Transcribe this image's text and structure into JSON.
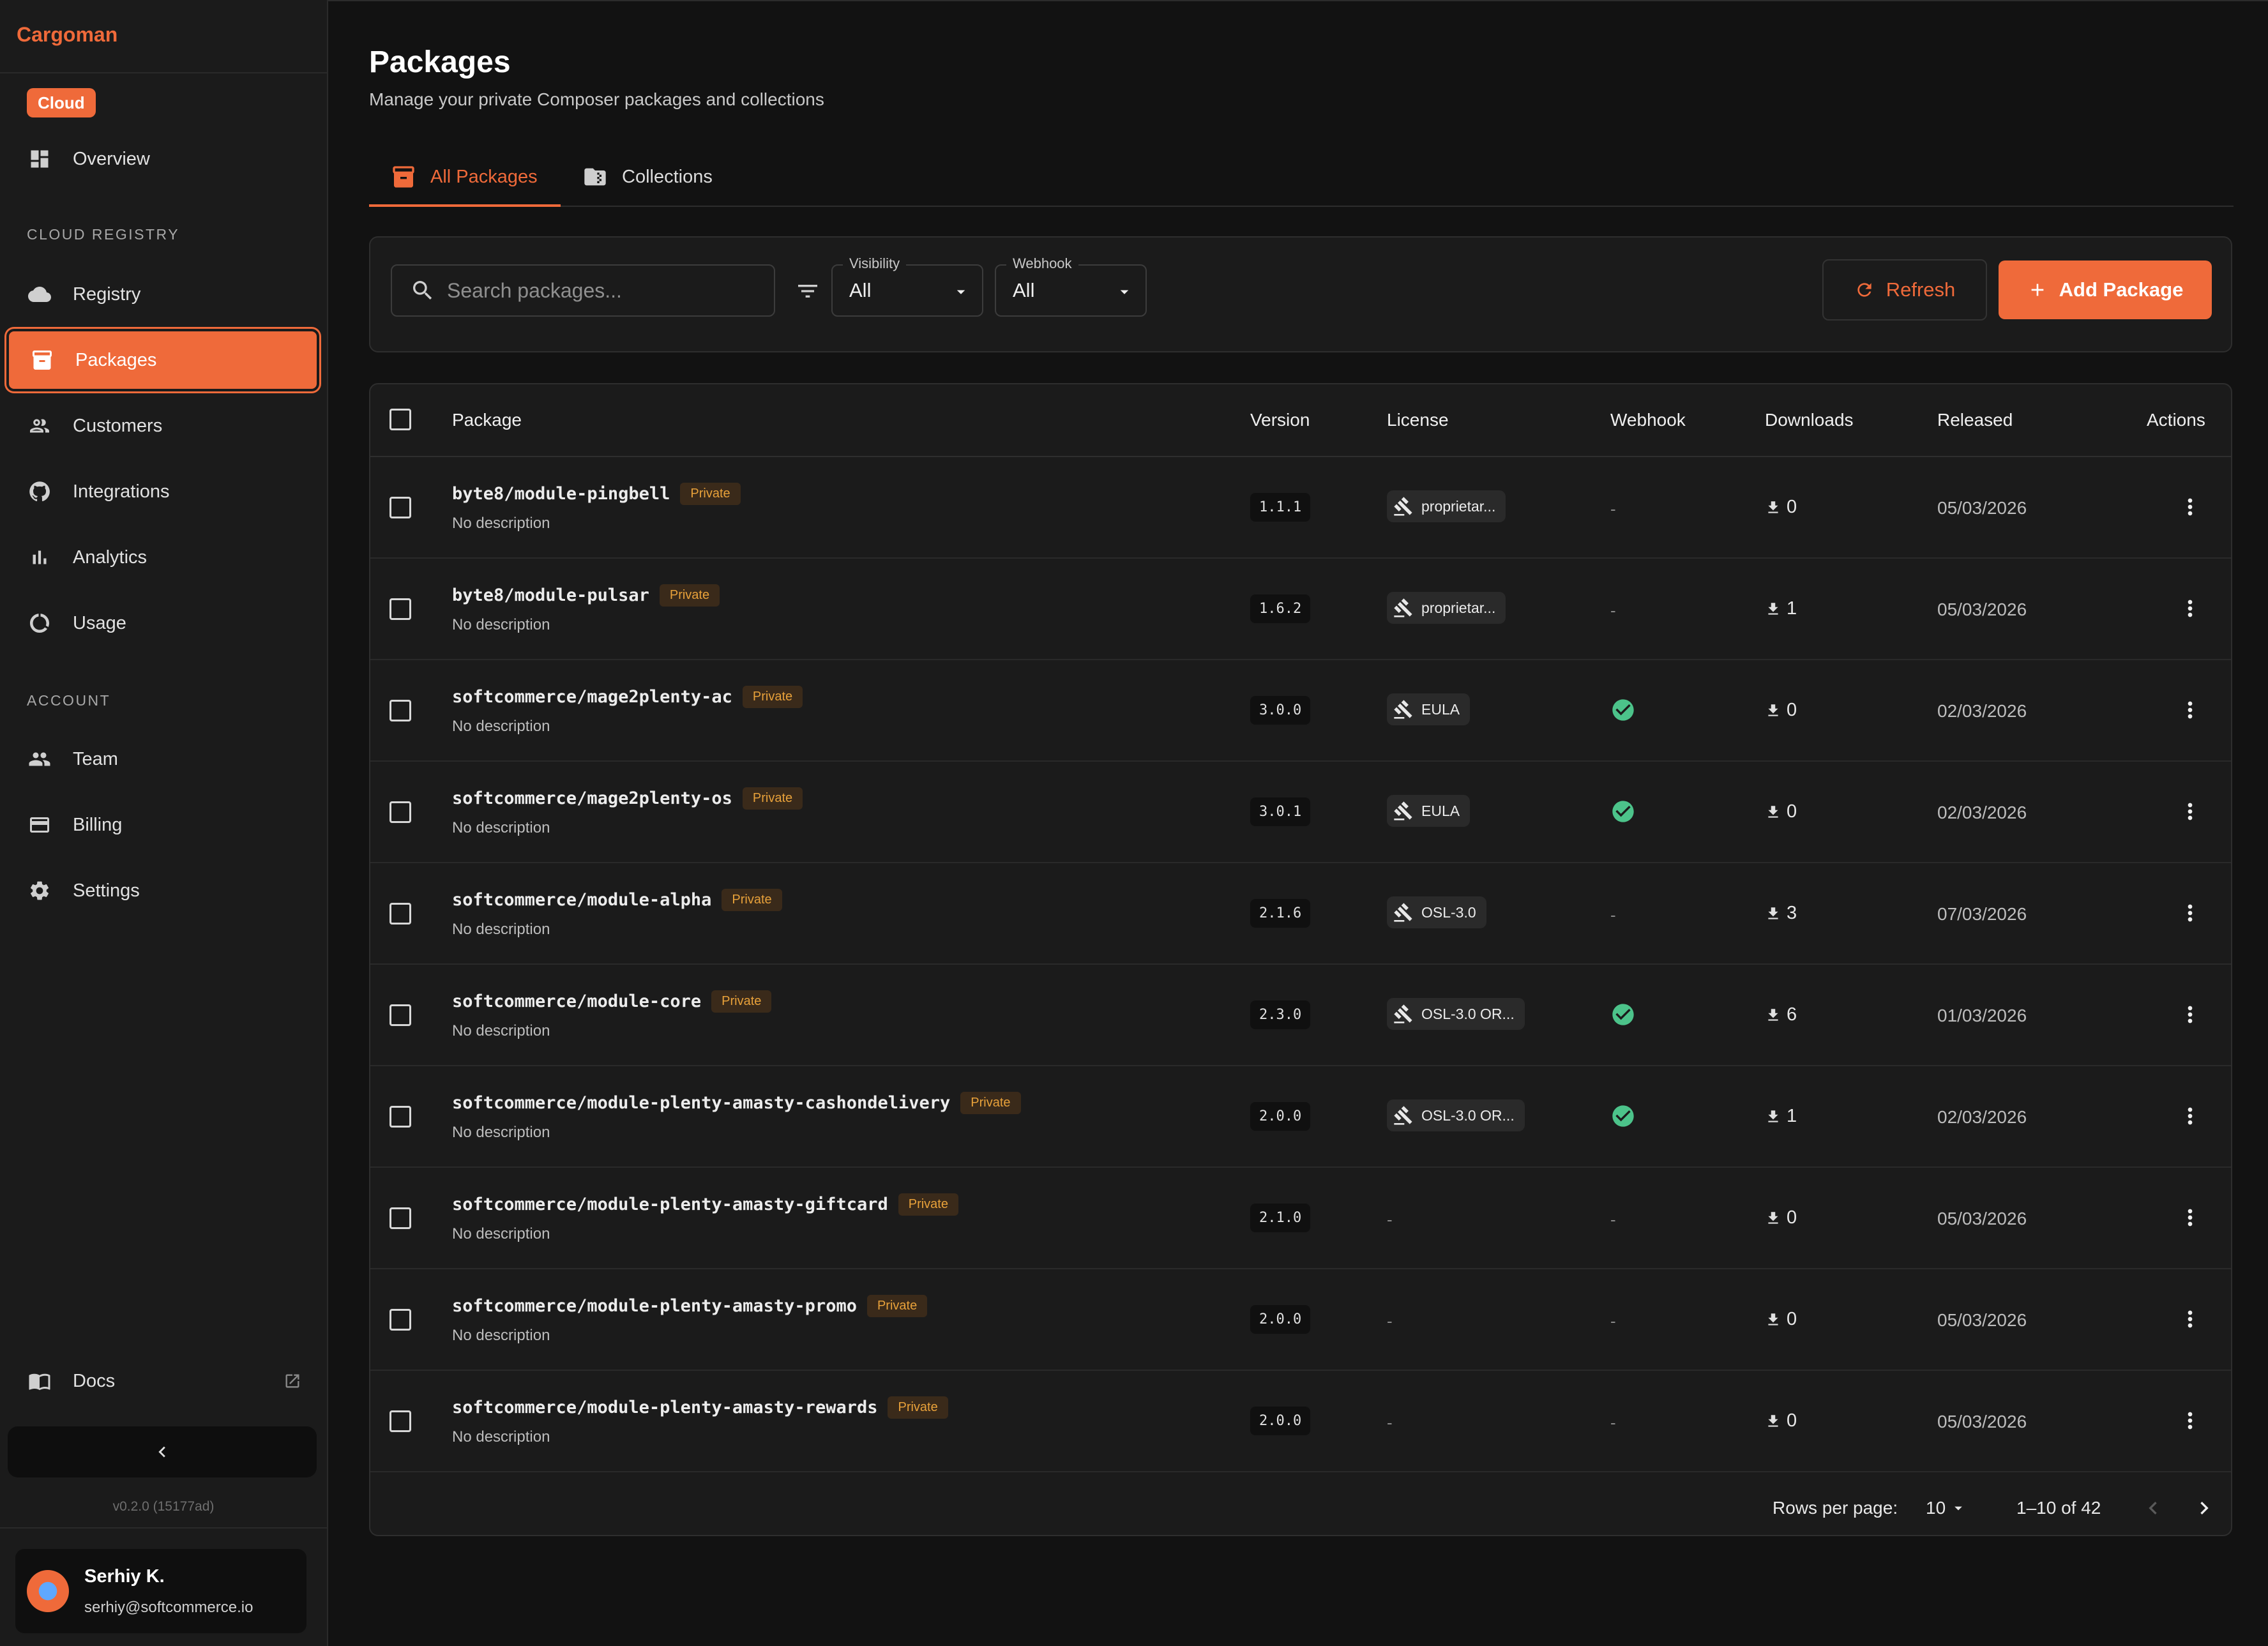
{
  "app": {
    "brand": "Cargoman",
    "badge": "Cloud",
    "version": "v0.2.0 (15177ad)"
  },
  "sidebar": {
    "overview": "Overview",
    "sections": {
      "registry": "CLOUD REGISTRY",
      "account": "ACCOUNT"
    },
    "registry_items": [
      {
        "label": "Registry",
        "icon": "cloud-icon"
      },
      {
        "label": "Packages",
        "icon": "package-icon",
        "active": true
      },
      {
        "label": "Customers",
        "icon": "customers-icon"
      },
      {
        "label": "Integrations",
        "icon": "github-icon"
      },
      {
        "label": "Analytics",
        "icon": "analytics-icon"
      },
      {
        "label": "Usage",
        "icon": "usage-icon"
      }
    ],
    "account_items": [
      {
        "label": "Team",
        "icon": "team-icon"
      },
      {
        "label": "Billing",
        "icon": "credit-card-icon"
      },
      {
        "label": "Settings",
        "icon": "gear-icon"
      }
    ],
    "docs": "Docs",
    "user": {
      "name": "Serhiy K.",
      "email": "serhiy@softcommerce.io"
    }
  },
  "page": {
    "title": "Packages",
    "subtitle": "Manage your private Composer packages and collections"
  },
  "tabs": [
    {
      "label": "All Packages",
      "active": true
    },
    {
      "label": "Collections",
      "active": false
    }
  ],
  "toolbar": {
    "search_placeholder": "Search packages...",
    "visibility_label": "Visibility",
    "visibility_value": "All",
    "webhook_label": "Webhook",
    "webhook_value": "All",
    "refresh_label": "Refresh",
    "add_label": "Add Package"
  },
  "table": {
    "columns": {
      "package": "Package",
      "version": "Version",
      "license": "License",
      "webhook": "Webhook",
      "downloads": "Downloads",
      "released": "Released",
      "actions": "Actions"
    },
    "private_label": "Private",
    "rows": [
      {
        "name": "byte8/module-pingbell",
        "desc": "No description",
        "version": "1.1.1",
        "license": "proprietar...",
        "webhook": false,
        "downloads": "0",
        "released": "05/03/2026"
      },
      {
        "name": "byte8/module-pulsar",
        "desc": "No description",
        "version": "1.6.2",
        "license": "proprietar...",
        "webhook": false,
        "downloads": "1",
        "released": "05/03/2026"
      },
      {
        "name": "softcommerce/mage2plenty-ac",
        "desc": "No description",
        "version": "3.0.0",
        "license": "EULA",
        "webhook": true,
        "downloads": "0",
        "released": "02/03/2026"
      },
      {
        "name": "softcommerce/mage2plenty-os",
        "desc": "No description",
        "version": "3.0.1",
        "license": "EULA",
        "webhook": true,
        "downloads": "0",
        "released": "02/03/2026"
      },
      {
        "name": "softcommerce/module-alpha",
        "desc": "No description",
        "version": "2.1.6",
        "license": "OSL-3.0",
        "webhook": false,
        "downloads": "3",
        "released": "07/03/2026"
      },
      {
        "name": "softcommerce/module-core",
        "desc": "No description",
        "version": "2.3.0",
        "license": "OSL-3.0 OR...",
        "webhook": true,
        "downloads": "6",
        "released": "01/03/2026"
      },
      {
        "name": "softcommerce/module-plenty-amasty-cashondelivery",
        "desc": "No description",
        "version": "2.0.0",
        "license": "OSL-3.0 OR...",
        "webhook": true,
        "downloads": "1",
        "released": "02/03/2026"
      },
      {
        "name": "softcommerce/module-plenty-amasty-giftcard",
        "desc": "No description",
        "version": "2.1.0",
        "license": "",
        "webhook": false,
        "downloads": "0",
        "released": "05/03/2026"
      },
      {
        "name": "softcommerce/module-plenty-amasty-promo",
        "desc": "No description",
        "version": "2.0.0",
        "license": "",
        "webhook": false,
        "downloads": "0",
        "released": "05/03/2026"
      },
      {
        "name": "softcommerce/module-plenty-amasty-rewards",
        "desc": "No description",
        "version": "2.0.0",
        "license": "",
        "webhook": false,
        "downloads": "0",
        "released": "05/03/2026"
      }
    ],
    "empty_mark": "-"
  },
  "pagination": {
    "rows_per_page_label": "Rows per page:",
    "rows_per_page": "10",
    "range": "1–10 of 42"
  },
  "colors": {
    "accent": "#ef6a3a",
    "success": "#4cc38a",
    "private_badge": "#e8a13a"
  }
}
